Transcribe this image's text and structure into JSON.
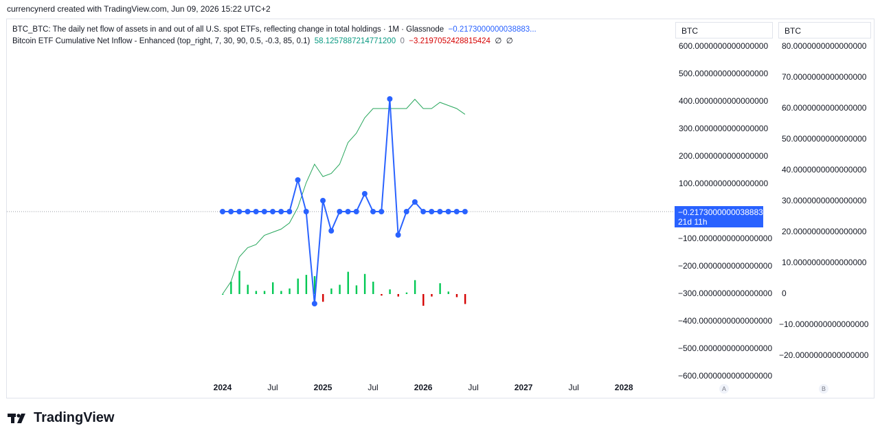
{
  "header": {
    "credit": "currencynerd created with TradingView.com, Jun 09, 2026 15:22 UTC+2"
  },
  "legend": {
    "line1": {
      "name": "BTC_BTC: The daily net flow of assets in and out of all U.S. spot ETFs, reflecting change in total holdings · 1M · Glassnode",
      "value": "−0.2173000000038883..."
    },
    "line2": {
      "name": "Bitcoin ETF Cumulative Net Inflow - Enhanced (top_right, 7, 30, 90, 0.5, -0.3, 85, 0.1)",
      "v1": "58.1257887214771200",
      "v2": "0",
      "v3": "−3.2197052428815424",
      "v4": "∅",
      "v5": "∅"
    }
  },
  "axis_a": {
    "title": "BTC",
    "chip": "A",
    "ticks": [
      "600.0000000000000000",
      "500.0000000000000000",
      "400.0000000000000000",
      "300.0000000000000000",
      "200.0000000000000000",
      "100.0000000000000000",
      "−100.0000000000000000",
      "−200.0000000000000000",
      "−300.0000000000000000",
      "−400.0000000000000000",
      "−500.0000000000000000",
      "−600.0000000000000000"
    ]
  },
  "axis_b": {
    "title": "BTC",
    "chip": "B",
    "ticks": [
      "80.0000000000000000",
      "70.0000000000000000",
      "60.0000000000000000",
      "50.0000000000000000",
      "40.0000000000000000",
      "30.0000000000000000",
      "20.0000000000000000",
      "10.0000000000000000",
      "0",
      "−10.0000000000000000",
      "−20.0000000000000000"
    ]
  },
  "last_price": {
    "value": "−0.2173000000038883",
    "countdown": "21d 11h"
  },
  "x_axis": {
    "labels": [
      {
        "text": "2024",
        "year": true
      },
      {
        "text": "Jul",
        "year": false
      },
      {
        "text": "2025",
        "year": true
      },
      {
        "text": "Jul",
        "year": false
      },
      {
        "text": "2026",
        "year": true
      },
      {
        "text": "Jul",
        "year": false
      },
      {
        "text": "2027",
        "year": true
      },
      {
        "text": "Jul",
        "year": false
      },
      {
        "text": "2028",
        "year": true
      }
    ]
  },
  "colors": {
    "flow": "#2962ff",
    "cumulative": "#26a65b",
    "bar_up": "#00c853",
    "bar_down": "#d50000",
    "grid_zero": "#9598a1"
  },
  "chart_data": {
    "type": "line",
    "x": [
      "2024-01",
      "2024-02",
      "2024-03",
      "2024-04",
      "2024-05",
      "2024-06",
      "2024-07",
      "2024-08",
      "2024-09",
      "2024-10",
      "2024-11",
      "2024-12",
      "2025-01",
      "2025-02",
      "2025-03",
      "2025-04",
      "2025-05",
      "2025-06",
      "2025-07",
      "2025-08",
      "2025-09",
      "2025-10",
      "2025-11",
      "2025-12",
      "2026-01",
      "2026-02",
      "2026-03",
      "2026-04",
      "2026-05",
      "2026-06"
    ],
    "series": [
      {
        "axis": "A",
        "style": "line-markers",
        "values": [
          0,
          0,
          0,
          0,
          0,
          0,
          0,
          0,
          0,
          115,
          0,
          -335,
          40,
          -70,
          0,
          0,
          0,
          65,
          0,
          0,
          410,
          -85,
          0,
          35,
          0,
          0,
          0,
          0,
          0,
          0
        ]
      },
      {
        "name": "Bitcoin ETF Cumulative Net Inflow - Enhanced",
        "axis": "B",
        "style": "line",
        "values": [
          0,
          4,
          12,
          15,
          16,
          19,
          20,
          21,
          23,
          28,
          36,
          42,
          38,
          39,
          42,
          49,
          52,
          57,
          60,
          60,
          60,
          60,
          60,
          63,
          60,
          60,
          62,
          61,
          60,
          58.13
        ]
      },
      {
        "axis": "B",
        "style": "histogram",
        "values": [
          0,
          4,
          7.5,
          3,
          1,
          1,
          3.8,
          1,
          1.8,
          5,
          6.2,
          5.8,
          -2.5,
          1.8,
          3,
          7.2,
          2.8,
          6.5,
          4,
          -0.5,
          1.5,
          -0.8,
          0.5,
          4.5,
          -3.8,
          -0.8,
          3.5,
          0.8,
          -1,
          -3.22
        ]
      }
    ],
    "axis_a_range": [
      -600,
      600
    ],
    "axis_b_range": [
      -20,
      80
    ],
    "grid": false
  }
}
